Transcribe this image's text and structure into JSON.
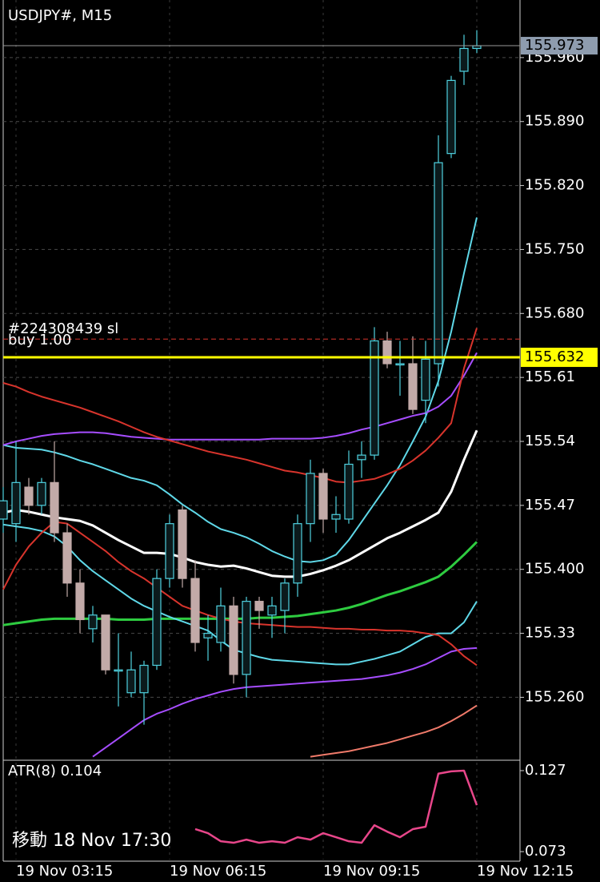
{
  "chart_data": [
    {
      "type": "candlestick",
      "title": "USDJPY#, M15",
      "categories": [
        null,
        "19 Nov 03:15",
        null,
        null,
        null,
        null,
        null,
        null,
        null,
        null,
        null,
        null,
        null,
        "19 Nov 06:15",
        null,
        null,
        null,
        null,
        null,
        null,
        null,
        null,
        null,
        null,
        null,
        "19 Nov 09:15",
        null,
        null,
        null,
        null,
        null,
        null,
        null,
        null,
        null,
        null,
        null,
        "19 Nov 12:15"
      ],
      "open": [
        155.455,
        155.45,
        155.49,
        155.47,
        155.495,
        155.44,
        155.385,
        155.335,
        155.35,
        155.29,
        155.265,
        155.265,
        155.295,
        155.39,
        155.465,
        155.39,
        155.325,
        155.32,
        155.36,
        155.285,
        155.365,
        155.35,
        155.355,
        155.385,
        155.45,
        155.505,
        155.455,
        155.455,
        155.52,
        155.525,
        155.65,
        155.625,
        155.625,
        155.585,
        155.625,
        155.855,
        155.945,
        155.97
      ],
      "high": [
        155.49,
        155.54,
        155.5,
        155.5,
        155.54,
        155.45,
        155.4,
        155.36,
        155.35,
        155.33,
        155.31,
        155.3,
        155.4,
        155.46,
        155.47,
        155.41,
        155.35,
        155.38,
        155.37,
        155.37,
        155.37,
        155.37,
        155.39,
        155.46,
        155.52,
        155.51,
        155.48,
        155.53,
        155.54,
        155.665,
        155.66,
        155.65,
        155.655,
        155.65,
        155.875,
        155.94,
        155.985,
        155.99
      ],
      "low": [
        155.44,
        155.43,
        155.46,
        155.46,
        155.43,
        155.37,
        155.33,
        155.32,
        155.285,
        155.25,
        155.26,
        155.23,
        155.29,
        155.38,
        155.38,
        155.31,
        155.3,
        155.31,
        155.275,
        155.26,
        155.335,
        155.325,
        155.33,
        155.37,
        155.43,
        155.44,
        155.44,
        155.45,
        155.5,
        155.52,
        155.62,
        155.59,
        155.57,
        155.56,
        155.6,
        155.85,
        155.93,
        155.965
      ],
      "close": [
        155.475,
        155.495,
        155.47,
        155.495,
        155.44,
        155.385,
        155.345,
        155.35,
        155.29,
        155.29,
        155.29,
        155.295,
        155.39,
        155.45,
        155.39,
        155.32,
        155.33,
        155.36,
        155.285,
        155.365,
        155.355,
        155.36,
        155.385,
        155.45,
        155.505,
        155.455,
        155.46,
        155.515,
        155.525,
        155.65,
        155.625,
        155.625,
        155.575,
        155.63,
        155.845,
        155.935,
        155.97,
        155.973
      ],
      "bull_color": "#4fd2e0",
      "bear_color": "#c2aaa8",
      "series": [
        {
          "color": "#ffffff",
          "values": [
            155.462,
            155.465,
            155.463,
            155.46,
            155.457,
            155.455,
            155.453,
            155.448,
            155.44,
            155.432,
            155.425,
            155.418,
            155.418,
            155.417,
            155.413,
            155.408,
            155.405,
            155.403,
            155.404,
            155.401,
            155.397,
            155.393,
            155.392,
            155.392,
            155.395,
            155.399,
            155.404,
            155.41,
            155.418,
            155.426,
            155.434,
            155.44,
            155.447,
            155.454,
            155.462,
            155.485,
            155.52,
            155.552
          ]
        },
        {
          "color": "#2ecc40",
          "values": [
            155.339,
            155.341,
            155.343,
            155.345,
            155.346,
            155.346,
            155.346,
            155.346,
            155.346,
            155.345,
            155.345,
            155.345,
            155.346,
            155.346,
            155.346,
            155.346,
            155.346,
            155.346,
            155.346,
            155.346,
            155.347,
            155.347,
            155.348,
            155.349,
            155.351,
            155.353,
            155.355,
            155.358,
            155.362,
            155.367,
            155.372,
            155.376,
            155.381,
            155.386,
            155.392,
            155.403,
            155.416,
            155.43
          ]
        },
        {
          "color": "#5fd8e8",
          "values": [
            155.536,
            155.533,
            155.532,
            155.531,
            155.528,
            155.524,
            155.519,
            155.515,
            155.51,
            155.505,
            155.5,
            155.497,
            155.492,
            155.482,
            155.471,
            155.462,
            155.452,
            155.444,
            155.44,
            155.435,
            155.428,
            155.42,
            155.414,
            155.409,
            155.408,
            155.41,
            155.416,
            155.432,
            155.452,
            155.472,
            155.492,
            155.514,
            155.54,
            155.567,
            155.606,
            155.66,
            155.724,
            155.785
          ]
        },
        {
          "color": "#5fd8e8",
          "values": [
            155.449,
            155.447,
            155.445,
            155.442,
            155.436,
            155.425,
            155.41,
            155.398,
            155.388,
            155.378,
            155.368,
            155.36,
            155.354,
            155.348,
            155.343,
            155.338,
            155.333,
            155.322,
            155.312,
            155.308,
            155.304,
            155.301,
            155.3,
            155.299,
            155.298,
            155.297,
            155.296,
            155.296,
            155.299,
            155.302,
            155.306,
            155.31,
            155.318,
            155.326,
            155.33,
            155.33,
            155.342,
            155.365
          ]
        },
        {
          "color": "#a64dff",
          "values": [
            155.536,
            155.54,
            155.543,
            155.546,
            155.548,
            155.549,
            155.55,
            155.55,
            155.549,
            155.547,
            155.545,
            155.544,
            155.543,
            155.542,
            155.542,
            155.542,
            155.542,
            155.542,
            155.542,
            155.542,
            155.542,
            155.543,
            155.543,
            155.543,
            155.543,
            155.544,
            155.546,
            155.549,
            155.553,
            155.556,
            155.56,
            155.564,
            155.568,
            155.571,
            155.578,
            155.59,
            155.612,
            155.637
          ]
        },
        {
          "color": "#a64dff",
          "values": [
            null,
            null,
            null,
            null,
            null,
            null,
            null,
            155.195,
            155.205,
            155.215,
            155.225,
            155.235,
            155.242,
            155.247,
            155.253,
            155.258,
            155.262,
            155.266,
            155.269,
            155.271,
            155.272,
            155.273,
            155.274,
            155.275,
            155.276,
            155.277,
            155.278,
            155.279,
            155.28,
            155.282,
            155.284,
            155.287,
            155.291,
            155.296,
            155.303,
            155.31,
            155.313,
            155.314
          ]
        },
        {
          "color": "#d8342c",
          "values": [
            155.604,
            155.6,
            155.594,
            155.589,
            155.585,
            155.581,
            155.577,
            155.572,
            155.567,
            155.562,
            155.556,
            155.55,
            155.545,
            155.541,
            155.537,
            155.533,
            155.529,
            155.526,
            155.523,
            155.52,
            155.516,
            155.512,
            155.508,
            155.506,
            155.503,
            155.5,
            155.496,
            155.495,
            155.497,
            155.499,
            155.504,
            155.51,
            155.519,
            155.53,
            155.544,
            155.56,
            155.62,
            155.664
          ]
        },
        {
          "color": "#d8342c",
          "values": [
            155.378,
            155.405,
            155.425,
            155.44,
            155.452,
            155.45,
            155.44,
            155.43,
            155.42,
            155.408,
            155.398,
            155.39,
            155.38,
            155.37,
            155.36,
            155.355,
            155.35,
            155.346,
            155.343,
            155.341,
            155.34,
            155.339,
            155.338,
            155.337,
            155.337,
            155.336,
            155.335,
            155.335,
            155.334,
            155.334,
            155.333,
            155.333,
            155.332,
            155.33,
            155.328,
            155.318,
            155.305,
            155.295
          ]
        },
        {
          "color": "#f07a6a",
          "values": [
            null,
            null,
            null,
            null,
            null,
            null,
            null,
            null,
            null,
            null,
            null,
            null,
            null,
            null,
            null,
            null,
            null,
            null,
            null,
            null,
            null,
            null,
            null,
            null,
            155.195,
            155.197,
            155.199,
            155.201,
            155.204,
            155.207,
            155.21,
            155.214,
            155.218,
            155.222,
            155.227,
            155.234,
            155.242,
            155.251
          ]
        }
      ],
      "ylim": [
        155.192,
        156.023
      ],
      "yticks": [
        {
          "value": 155.26,
          "label": "155.260"
        },
        155.33,
        {
          "value": 155.4,
          "label": "155.400"
        },
        155.47,
        155.54,
        155.61,
        {
          "value": 155.68,
          "label": "155.680"
        },
        {
          "value": 155.75,
          "label": "155.750"
        },
        {
          "value": 155.82,
          "label": "155.820"
        },
        {
          "value": 155.89,
          "label": "155.890"
        },
        {
          "value": 155.96,
          "label": "155.960"
        }
      ],
      "grid": true,
      "current_price": 155.973,
      "current_color": "#8e9cae",
      "order_price": 155.632,
      "order_color": "#ffff00",
      "sl_price": 155.652,
      "sl_color": "#d8342c",
      "order_labels": [
        "#224308439 sl",
        "buy 1.00"
      ],
      "annotation": "移動 18 Nov 17:30"
    },
    {
      "type": "line",
      "title": "ATR(8) 0.104",
      "color": "#e8468a",
      "values": [
        null,
        null,
        null,
        null,
        null,
        null,
        null,
        null,
        null,
        null,
        null,
        null,
        null,
        null,
        null,
        0.088,
        0.0853,
        0.0799,
        0.0789,
        0.081,
        0.0789,
        0.0799,
        0.0789,
        0.0826,
        0.081,
        0.0853,
        0.0826,
        0.0799,
        0.0789,
        0.0906,
        0.0863,
        0.0826,
        0.088,
        0.0896,
        0.125,
        0.1265,
        0.127,
        0.104
      ],
      "ylim": [
        0.0677,
        0.1334
      ],
      "yticks": [
        0.073,
        0.127
      ]
    }
  ]
}
